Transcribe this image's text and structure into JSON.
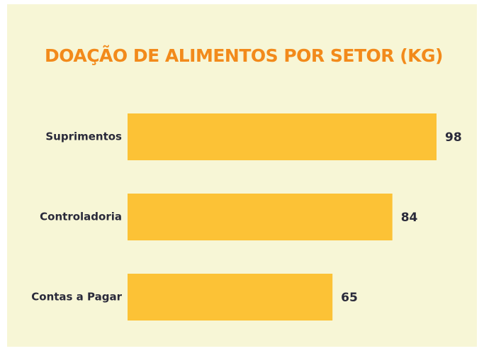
{
  "chart_data": {
    "type": "bar",
    "orientation": "horizontal",
    "title": "DOAÇÃO DE ALIMENTOS POR SETOR (KG)",
    "categories": [
      "Suprimentos",
      "Controladoria",
      "Contas a Pagar"
    ],
    "values": [
      98,
      84,
      65
    ],
    "color": "#fcc236"
  }
}
